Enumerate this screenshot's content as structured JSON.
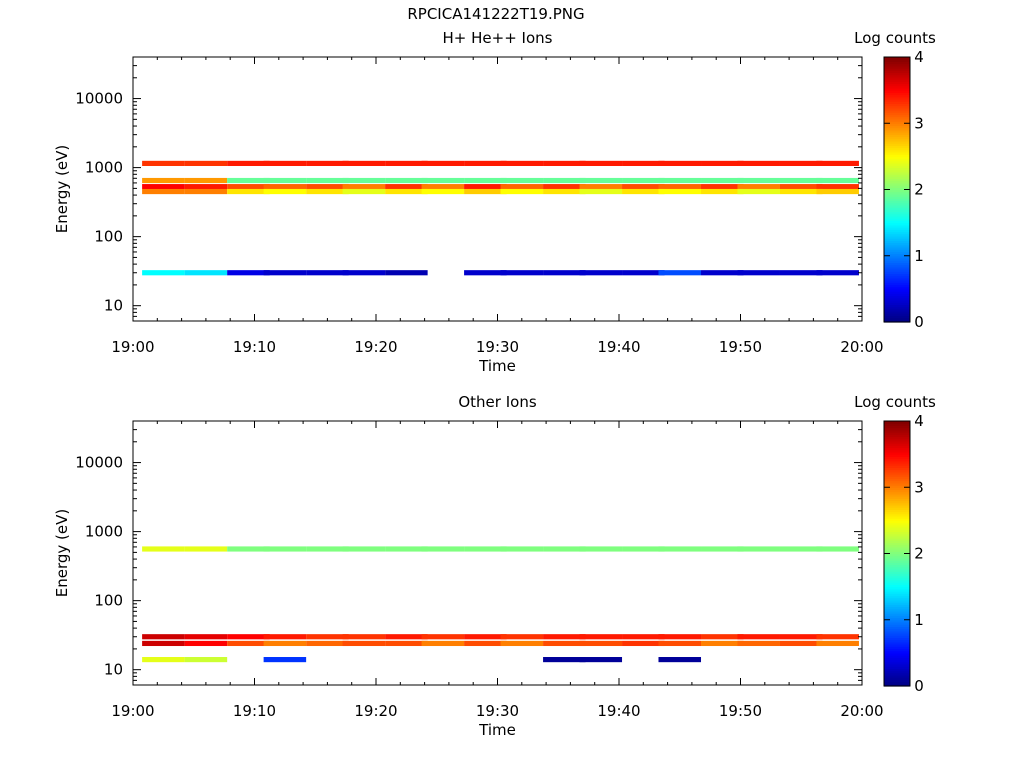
{
  "figure": {
    "title": "RPCICA141222T19.PNG"
  },
  "colors": {
    "colormap": [
      "#00007f",
      "#0000ff",
      "#007fff",
      "#00ffff",
      "#7fff7f",
      "#ffff00",
      "#ff7f00",
      "#ff0000",
      "#7f0000"
    ],
    "background": "#ffffff",
    "axis": "#000000"
  },
  "chart_data": [
    {
      "type": "heatmap",
      "title": "H+ He++ Ions",
      "xlabel": "Time",
      "ylabel": "Energy (eV)",
      "colorbar_label": "Log counts",
      "colorbar_ticks": [
        0,
        1,
        2,
        3,
        4
      ],
      "clim": [
        0,
        4
      ],
      "yscale": "log",
      "ylim": [
        6,
        40000
      ],
      "xlim": [
        "19:00",
        "20:00"
      ],
      "x_tick_labels": [
        "19:00",
        "19:10",
        "19:20",
        "19:30",
        "19:40",
        "19:50",
        "20:00"
      ],
      "y_tick_labels": [
        "10",
        "100",
        "1000",
        "10000"
      ],
      "time_bins": [
        "19:02.5",
        "19:06",
        "19:09.5",
        "19:12.5",
        "19:16",
        "19:19",
        "19:22.5",
        "19:25.5",
        "19:29",
        "19:32",
        "19:35.5",
        "19:38.5",
        "19:42",
        "19:45",
        "19:48.5",
        "19:51.5",
        "19:55",
        "19:58"
      ],
      "energy_bands": [
        {
          "energy_eV": 1150,
          "log_counts": [
            3.3,
            3.3,
            3.4,
            3.4,
            3.4,
            3.4,
            3.4,
            3.4,
            3.4,
            3.4,
            3.4,
            3.4,
            3.4,
            3.4,
            3.4,
            3.4,
            3.4,
            3.4
          ]
        },
        {
          "energy_eV": 650,
          "log_counts": [
            2.9,
            2.9,
            1.9,
            1.9,
            1.9,
            1.9,
            1.9,
            1.9,
            1.9,
            1.9,
            1.9,
            1.9,
            1.9,
            1.9,
            1.9,
            1.9,
            1.9,
            1.9
          ]
        },
        {
          "energy_eV": 530,
          "log_counts": [
            3.5,
            3.4,
            3.2,
            3.1,
            3.2,
            3.0,
            3.3,
            3.0,
            3.4,
            3.1,
            3.3,
            3.0,
            3.2,
            3.1,
            3.3,
            3.0,
            3.2,
            3.3
          ]
        },
        {
          "energy_eV": 450,
          "log_counts": [
            3.0,
            3.0,
            2.6,
            2.5,
            2.6,
            2.4,
            2.6,
            2.5,
            2.7,
            2.5,
            2.6,
            2.4,
            2.6,
            2.5,
            2.6,
            2.4,
            2.6,
            2.7
          ]
        },
        {
          "energy_eV": 30,
          "log_counts": [
            1.5,
            1.4,
            0.4,
            0.3,
            0.3,
            0.3,
            0.2,
            0,
            0.3,
            0.3,
            0.3,
            0.3,
            0.3,
            0.8,
            0.3,
            0.3,
            0.3,
            0.3
          ]
        }
      ]
    },
    {
      "type": "heatmap",
      "title": "Other Ions",
      "xlabel": "Time",
      "ylabel": "Energy (eV)",
      "colorbar_label": "Log counts",
      "colorbar_ticks": [
        0,
        1,
        2,
        3,
        4
      ],
      "clim": [
        0,
        4
      ],
      "yscale": "log",
      "ylim": [
        6,
        40000
      ],
      "xlim": [
        "19:00",
        "20:00"
      ],
      "x_tick_labels": [
        "19:00",
        "19:10",
        "19:20",
        "19:30",
        "19:40",
        "19:50",
        "20:00"
      ],
      "y_tick_labels": [
        "10",
        "100",
        "1000",
        "10000"
      ],
      "time_bins": [
        "19:02.5",
        "19:06",
        "19:09.5",
        "19:12.5",
        "19:16",
        "19:19",
        "19:22.5",
        "19:25.5",
        "19:29",
        "19:32",
        "19:35.5",
        "19:38.5",
        "19:42",
        "19:45",
        "19:48.5",
        "19:51.5",
        "19:55",
        "19:58"
      ],
      "energy_bands": [
        {
          "energy_eV": 560,
          "log_counts": [
            2.4,
            2.4,
            2.0,
            2.0,
            2.0,
            2.0,
            2.0,
            2.0,
            2.0,
            2.0,
            2.0,
            2.0,
            2.0,
            2.0,
            2.0,
            2.0,
            2.0,
            2.0
          ]
        },
        {
          "energy_eV": 30,
          "log_counts": [
            3.7,
            3.6,
            3.5,
            3.4,
            3.3,
            3.3,
            3.4,
            3.3,
            3.4,
            3.3,
            3.4,
            3.4,
            3.4,
            3.4,
            3.3,
            3.4,
            3.4,
            3.3
          ]
        },
        {
          "energy_eV": 24,
          "log_counts": [
            3.7,
            3.5,
            3.2,
            3.0,
            3.1,
            3.2,
            3.2,
            3.0,
            3.2,
            3.0,
            3.2,
            3.2,
            3.3,
            3.2,
            3.0,
            3.1,
            3.2,
            3.0
          ]
        },
        {
          "energy_eV": 14,
          "log_counts": [
            2.4,
            2.3,
            0,
            0.7,
            0,
            0,
            0,
            0,
            0,
            0,
            0.1,
            0.1,
            0,
            0.1,
            0,
            0,
            0,
            0
          ]
        }
      ]
    }
  ]
}
